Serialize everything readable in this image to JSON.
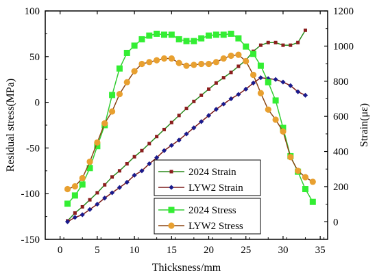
{
  "chart_data": {
    "type": "line",
    "xlabel": "Thicksness/mm",
    "ylabel_left": "Residual stress(MPa)",
    "ylabel_right": "Strain(με)",
    "xlim": [
      -2,
      36
    ],
    "ylim_left": [
      -150,
      100
    ],
    "ylim_right": [
      -100,
      1200
    ],
    "xticks": [
      0,
      5,
      10,
      15,
      20,
      25,
      30,
      35
    ],
    "yticks_left": [
      -150,
      -100,
      -50,
      0,
      50,
      100
    ],
    "yticks_right": [
      0,
      200,
      400,
      600,
      800,
      1000,
      1200
    ],
    "legend_strain": [
      "2024  Strain",
      "LYW2  Strain"
    ],
    "legend_stress": [
      "2024  Stress",
      "LYW2  Stress"
    ],
    "series": [
      {
        "name": "2024  Strain",
        "axis": "right",
        "marker": "square-small",
        "color": "#2a8a1c",
        "markerColor": "#8b1e1e",
        "x": [
          1,
          2,
          3,
          4,
          5,
          6,
          7,
          8,
          9,
          10,
          11,
          12,
          13,
          14,
          15,
          16,
          17,
          18,
          19,
          20,
          21,
          22,
          23,
          24,
          25,
          26,
          27,
          28,
          29,
          30,
          31,
          32,
          33
        ],
        "y": [
          5,
          50,
          85,
          125,
          165,
          210,
          255,
          290,
          330,
          370,
          405,
          445,
          485,
          525,
          565,
          605,
          645,
          685,
          720,
          755,
          790,
          820,
          850,
          885,
          920,
          970,
          1005,
          1020,
          1020,
          1005,
          1005,
          1020,
          1090
        ]
      },
      {
        "name": "LYW2  Strain",
        "axis": "right",
        "marker": "diamond",
        "color": "#7a1a1a",
        "markerColor": "#1a1a8c",
        "x": [
          1,
          2,
          3,
          4,
          5,
          6,
          7,
          8,
          9,
          10,
          11,
          12,
          13,
          14,
          15,
          16,
          17,
          18,
          19,
          20,
          21,
          22,
          23,
          24,
          25,
          26,
          27,
          28,
          29,
          30,
          31,
          32,
          33
        ],
        "y": [
          0,
          25,
          40,
          70,
          100,
          135,
          165,
          195,
          225,
          265,
          290,
          330,
          365,
          405,
          435,
          465,
          500,
          535,
          570,
          605,
          640,
          670,
          700,
          725,
          755,
          790,
          820,
          815,
          810,
          795,
          775,
          740,
          720
        ]
      },
      {
        "name": "2024  Stress",
        "axis": "left",
        "marker": "square",
        "color": "#33cc33",
        "markerColor": "#33ee33",
        "x": [
          1,
          2,
          3,
          4,
          5,
          6,
          7,
          8,
          9,
          10,
          11,
          12,
          13,
          14,
          15,
          16,
          17,
          18,
          19,
          20,
          21,
          22,
          23,
          24,
          25,
          26,
          27,
          28,
          29,
          30,
          31,
          32,
          33,
          34
        ],
        "y": [
          -111,
          -102,
          -90,
          -72,
          -48,
          -25,
          8,
          37,
          54,
          62,
          69,
          73,
          75,
          74,
          74,
          69,
          67,
          67,
          70,
          73,
          74,
          74,
          75,
          70,
          61,
          53,
          40,
          22,
          2,
          -28,
          -59,
          -76,
          -95,
          -109
        ]
      },
      {
        "name": "LYW2  Stress",
        "axis": "left",
        "marker": "circle",
        "color": "#8b4513",
        "markerColor": "#e8a030",
        "x": [
          1,
          2,
          3,
          4,
          5,
          6,
          7,
          8,
          9,
          10,
          11,
          12,
          13,
          14,
          15,
          16,
          17,
          18,
          19,
          20,
          21,
          22,
          23,
          24,
          25,
          26,
          27,
          28,
          29,
          30,
          31,
          32,
          33,
          34
        ],
        "y": [
          -95,
          -92,
          -83,
          -65,
          -44,
          -23,
          -10,
          9,
          22,
          34,
          42,
          44,
          46,
          48,
          48,
          43,
          40,
          41,
          42,
          42,
          44,
          48,
          51,
          52,
          45,
          30,
          10,
          -8,
          -19,
          -32,
          -60,
          -75,
          -82,
          -87
        ]
      }
    ]
  }
}
